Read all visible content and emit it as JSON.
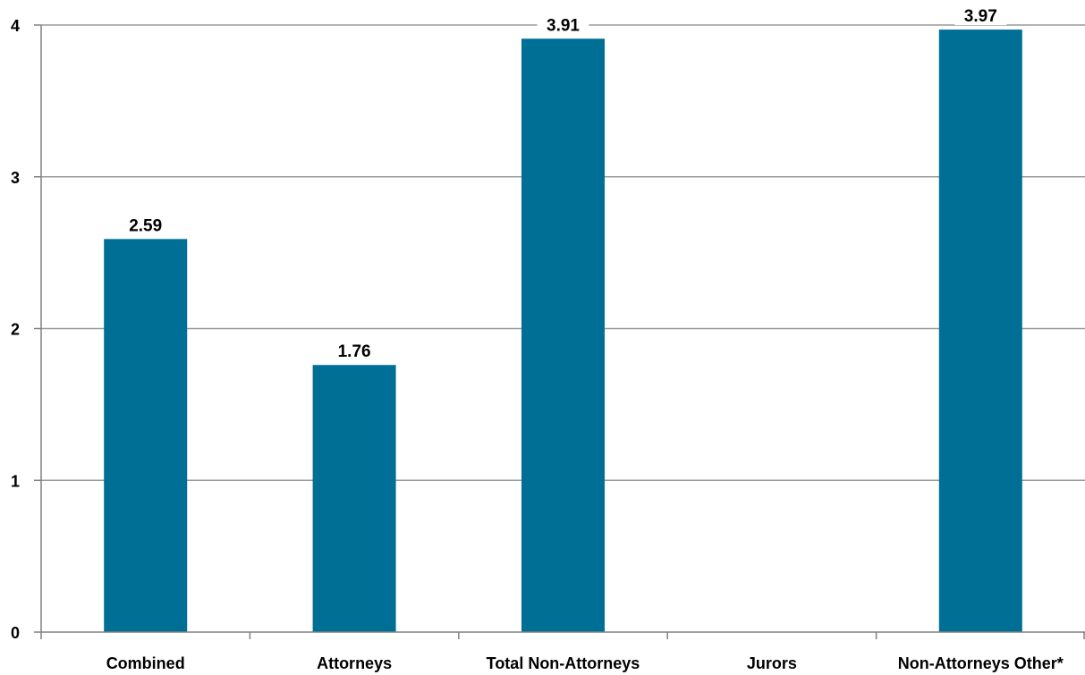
{
  "chart_data": {
    "type": "bar",
    "categories": [
      "Combined",
      "Attorneys",
      "Total Non-Attorneys",
      "Jurors",
      "Non-Attorneys Other*"
    ],
    "values": [
      2.59,
      1.76,
      3.91,
      null,
      3.97
    ],
    "data_labels": [
      "2.59",
      "1.76",
      "3.91",
      "",
      "3.97"
    ],
    "y_ticks": [
      {
        "value": 0,
        "label": "0"
      },
      {
        "value": 1,
        "label": "1"
      },
      {
        "value": 2,
        "label": "2"
      },
      {
        "value": 3,
        "label": "3"
      },
      {
        "value": 4,
        "label": "4"
      }
    ],
    "ylim": [
      0,
      4
    ],
    "grid": true,
    "legend": "none",
    "bar_color": "#006f96",
    "grid_color": "#999999"
  }
}
